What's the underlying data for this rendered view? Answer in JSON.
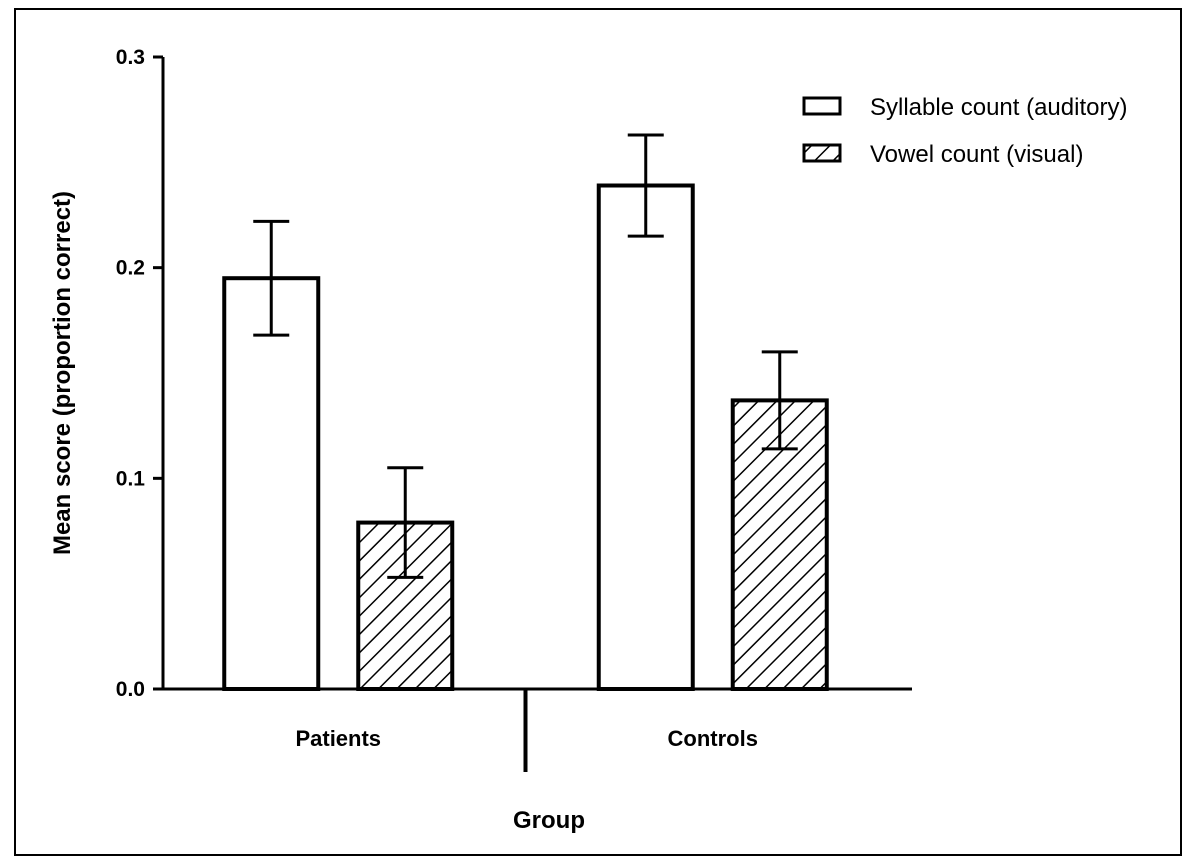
{
  "chart_data": {
    "type": "bar",
    "title": "",
    "xlabel": "Group",
    "ylabel": "Mean score (proportion correct)",
    "categories": [
      "Patients",
      "Controls"
    ],
    "ylim": [
      0,
      0.3
    ],
    "yticks": [
      "0.0",
      "0.1",
      "0.2",
      "0.3"
    ],
    "grid": false,
    "legend_position": "top-right",
    "series": [
      {
        "name": "Syllable count (auditory)",
        "fill": "none",
        "values": [
          0.195,
          0.239
        ],
        "error": [
          0.027,
          0.024
        ]
      },
      {
        "name": "Vowel count (visual)",
        "fill": "hatched",
        "values": [
          0.079,
          0.137
        ],
        "error": [
          0.026,
          0.023
        ]
      }
    ],
    "colors": {
      "stroke": "#000000",
      "background": "#ffffff"
    }
  }
}
